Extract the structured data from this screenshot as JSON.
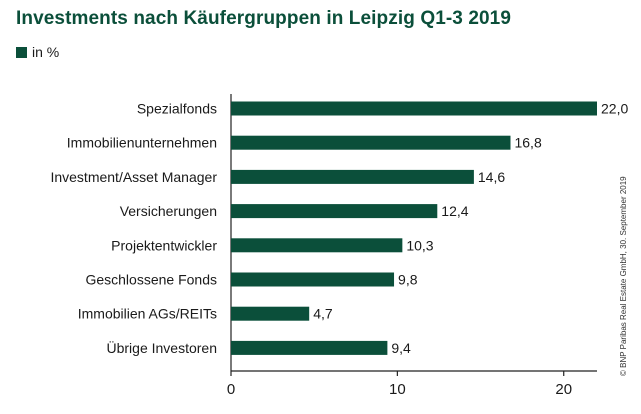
{
  "chart_data": {
    "type": "bar",
    "orientation": "horizontal",
    "title": "Investments nach Käufergruppen in Leipzig Q1-3 2019",
    "legend_label": "in %",
    "categories": [
      "Spezialfonds",
      "Immobilienunternehmen",
      "Investment/Asset Manager",
      "Versicherungen",
      "Projektentwickler",
      "Geschlossene Fonds",
      "Immobilien AGs/REITs",
      "Übrige Investoren"
    ],
    "values": [
      22.0,
      16.8,
      14.6,
      12.4,
      10.3,
      9.8,
      4.7,
      9.4
    ],
    "value_labels": [
      "22,0",
      "16,8",
      "14,6",
      "12,4",
      "10,3",
      "9,8",
      "4,7",
      "9,4"
    ],
    "xlim": [
      0,
      22
    ],
    "xticks": [
      0,
      10,
      20
    ],
    "xtick_labels": [
      "0",
      "10",
      "20"
    ],
    "xlabel": "",
    "ylabel": "",
    "grid": false
  },
  "credit": "© BNP Paribas Real Estate GmbH, 30. September 2019",
  "colors": {
    "bar": "#0b4f3a",
    "title": "#0b4f3a",
    "axis": "#222222",
    "text": "#1a1a1a"
  }
}
